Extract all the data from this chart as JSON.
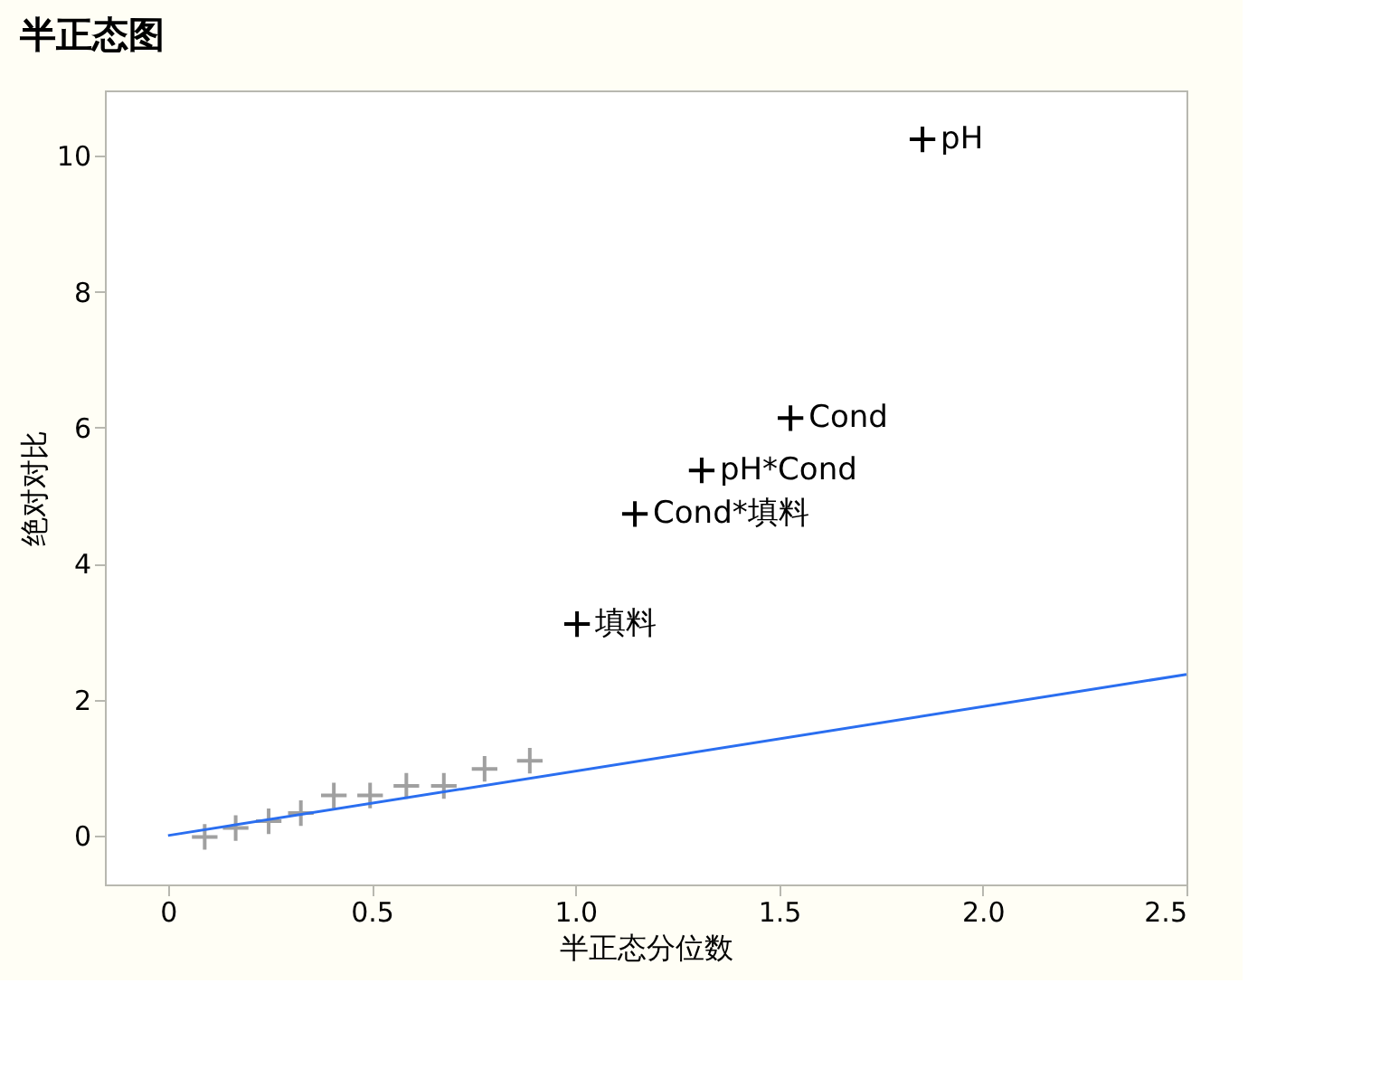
{
  "chart_data": {
    "type": "scatter",
    "title": "半正态图",
    "xlabel": "半正态分位数",
    "ylabel": "绝对对比",
    "series": [
      {
        "color": "#a0a0a0",
        "x": [
          0.09,
          0.166,
          0.247,
          0.326,
          0.407,
          0.496,
          0.585,
          0.677,
          0.777,
          0.888
        ],
        "values": [
          -0.02,
          0.11,
          0.21,
          0.33,
          0.59,
          0.59,
          0.73,
          0.73,
          0.98,
          1.1
        ]
      },
      {
        "color": "#000000",
        "x": [
          1.004,
          1.146,
          1.31,
          1.528,
          1.852
        ],
        "values": [
          3.11,
          4.73,
          5.37,
          6.14,
          10.24
        ]
      },
      {
        "type": "line",
        "color": "#2a6ef0",
        "x": [
          0,
          2.5
        ],
        "values": [
          0,
          2.37
        ],
        "marker": "none"
      }
    ],
    "annotations": [
      {
        "text": "填料",
        "x": 1.004,
        "y": 3.11
      },
      {
        "text": "Cond*填料",
        "x": 1.146,
        "y": 4.73
      },
      {
        "text": "pH*Cond",
        "x": 1.31,
        "y": 5.37
      },
      {
        "text": "Cond",
        "x": 1.528,
        "y": 6.14
      },
      {
        "text": "pH",
        "x": 1.852,
        "y": 10.24
      }
    ],
    "xlim": [
      -0.155,
      2.5
    ],
    "xticks": [
      0,
      0.5,
      {
        "value": 1,
        "label": "1.0"
      },
      1.5,
      {
        "value": 2,
        "label": "2.0"
      },
      2.5
    ],
    "ylim": [
      -0.72,
      10.96
    ],
    "yticks": [
      0,
      2,
      4,
      6,
      8,
      10
    ],
    "marker": "cross",
    "grid": false
  }
}
